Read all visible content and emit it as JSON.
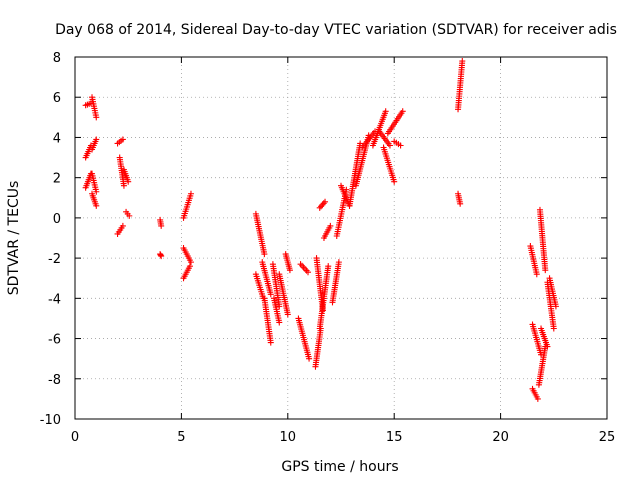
{
  "chart_data": {
    "type": "scatter",
    "title": "Day 068 of 2014, Sidereal Day-to-day VTEC variation (SDTVAR) for receiver adis",
    "xlabel": "GPS time / hours",
    "ylabel": "SDTVAR / TECUs",
    "xlim": [
      0,
      25
    ],
    "ylim": [
      -10,
      8
    ],
    "xticks": [
      0,
      5,
      10,
      15,
      20,
      25
    ],
    "yticks": [
      -10,
      -8,
      -6,
      -4,
      -2,
      0,
      2,
      4,
      6,
      8
    ],
    "grid": true,
    "marker": "plus",
    "color": "#ff0000",
    "series": [
      {
        "name": "SDTVAR",
        "segments": [
          {
            "x": [
              0.5,
              0.75
            ],
            "y": [
              5.6,
              5.7
            ]
          },
          {
            "x": [
              0.5,
              0.75
            ],
            "y": [
              3.0,
              3.6
            ]
          },
          {
            "x": [
              0.5,
              0.75
            ],
            "y": [
              1.5,
              2.2
            ]
          },
          {
            "x": [
              0.8,
              1.0
            ],
            "y": [
              6.0,
              5.0
            ]
          },
          {
            "x": [
              0.8,
              1.0
            ],
            "y": [
              3.4,
              3.9
            ]
          },
          {
            "x": [
              0.8,
              1.0
            ],
            "y": [
              2.2,
              1.3
            ]
          },
          {
            "x": [
              0.8,
              1.0
            ],
            "y": [
              1.2,
              0.6
            ]
          },
          {
            "x": [
              2.0,
              2.25
            ],
            "y": [
              3.7,
              3.9
            ]
          },
          {
            "x": [
              2.0,
              2.25
            ],
            "y": [
              -0.8,
              -0.4
            ]
          },
          {
            "x": [
              2.1,
              2.3
            ],
            "y": [
              3.0,
              1.6
            ]
          },
          {
            "x": [
              2.3,
              2.5
            ],
            "y": [
              2.4,
              1.8
            ]
          },
          {
            "x": [
              2.4,
              2.55
            ],
            "y": [
              0.3,
              0.1
            ]
          },
          {
            "x": [
              4.0,
              4.05
            ],
            "y": [
              -0.1,
              -0.4
            ]
          },
          {
            "x": [
              4.0,
              4.05
            ],
            "y": [
              -1.8,
              -1.9
            ]
          },
          {
            "x": [
              5.1,
              5.45
            ],
            "y": [
              0.0,
              1.2
            ]
          },
          {
            "x": [
              5.1,
              5.45
            ],
            "y": [
              -1.5,
              -2.2
            ]
          },
          {
            "x": [
              5.1,
              5.4
            ],
            "y": [
              -3.0,
              -2.4
            ]
          },
          {
            "x": [
              8.5,
              8.9
            ],
            "y": [
              0.2,
              -1.8
            ]
          },
          {
            "x": [
              8.5,
              8.85
            ],
            "y": [
              -2.8,
              -4.0
            ]
          },
          {
            "x": [
              8.8,
              9.2
            ],
            "y": [
              -2.2,
              -3.8
            ]
          },
          {
            "x": [
              8.9,
              9.2
            ],
            "y": [
              -4.0,
              -6.2
            ]
          },
          {
            "x": [
              9.3,
              9.6
            ],
            "y": [
              -2.3,
              -4.4
            ]
          },
          {
            "x": [
              9.35,
              9.6
            ],
            "y": [
              -4.0,
              -5.2
            ]
          },
          {
            "x": [
              9.6,
              10.0
            ],
            "y": [
              -2.8,
              -4.8
            ]
          },
          {
            "x": [
              9.9,
              10.1
            ],
            "y": [
              -1.8,
              -2.6
            ]
          },
          {
            "x": [
              10.5,
              11.0
            ],
            "y": [
              -5.0,
              -7.0
            ]
          },
          {
            "x": [
              10.6,
              10.95
            ],
            "y": [
              -2.3,
              -2.7
            ]
          },
          {
            "x": [
              11.3,
              11.55
            ],
            "y": [
              -7.4,
              -5.5
            ]
          },
          {
            "x": [
              11.35,
              11.65
            ],
            "y": [
              -2.0,
              -4.6
            ]
          },
          {
            "x": [
              11.5,
              11.75
            ],
            "y": [
              0.5,
              0.8
            ]
          },
          {
            "x": [
              11.5,
              11.9
            ],
            "y": [
              -5.5,
              -2.4
            ]
          },
          {
            "x": [
              11.7,
              12.0
            ],
            "y": [
              -1.0,
              -0.4
            ]
          },
          {
            "x": [
              12.1,
              12.4
            ],
            "y": [
              -4.2,
              -2.2
            ]
          },
          {
            "x": [
              12.3,
              12.75
            ],
            "y": [
              -0.9,
              1.4
            ]
          },
          {
            "x": [
              12.5,
              12.9
            ],
            "y": [
              1.6,
              0.6
            ]
          },
          {
            "x": [
              12.9,
              13.4
            ],
            "y": [
              0.6,
              3.7
            ]
          },
          {
            "x": [
              13.2,
              13.8
            ],
            "y": [
              1.6,
              4.1
            ]
          },
          {
            "x": [
              13.5,
              14.1
            ],
            "y": [
              3.5,
              4.3
            ]
          },
          {
            "x": [
              14.0,
              14.6
            ],
            "y": [
              3.6,
              5.3
            ]
          },
          {
            "x": [
              14.3,
              14.8
            ],
            "y": [
              4.3,
              3.6
            ]
          },
          {
            "x": [
              14.5,
              15.0
            ],
            "y": [
              3.5,
              1.8
            ]
          },
          {
            "x": [
              14.7,
              15.4
            ],
            "y": [
              4.2,
              5.3
            ]
          },
          {
            "x": [
              15.0,
              15.3
            ],
            "y": [
              3.8,
              3.6
            ]
          },
          {
            "x": [
              18.0,
              18.2
            ],
            "y": [
              5.4,
              7.8
            ]
          },
          {
            "x": [
              18.0,
              18.1
            ],
            "y": [
              1.2,
              0.7
            ]
          },
          {
            "x": [
              21.4,
              21.7
            ],
            "y": [
              -1.4,
              -2.8
            ]
          },
          {
            "x": [
              21.5,
              21.75
            ],
            "y": [
              -8.5,
              -9.0
            ]
          },
          {
            "x": [
              21.5,
              21.9
            ],
            "y": [
              -5.3,
              -6.8
            ]
          },
          {
            "x": [
              21.8,
              22.1
            ],
            "y": [
              -8.3,
              -6.4
            ]
          },
          {
            "x": [
              21.85,
              22.1
            ],
            "y": [
              0.4,
              -2.6
            ]
          },
          {
            "x": [
              21.9,
              22.2
            ],
            "y": [
              -5.5,
              -6.4
            ]
          },
          {
            "x": [
              22.2,
              22.5
            ],
            "y": [
              -3.2,
              -5.5
            ]
          },
          {
            "x": [
              22.3,
              22.6
            ],
            "y": [
              -3.0,
              -4.4
            ]
          }
        ]
      }
    ]
  }
}
